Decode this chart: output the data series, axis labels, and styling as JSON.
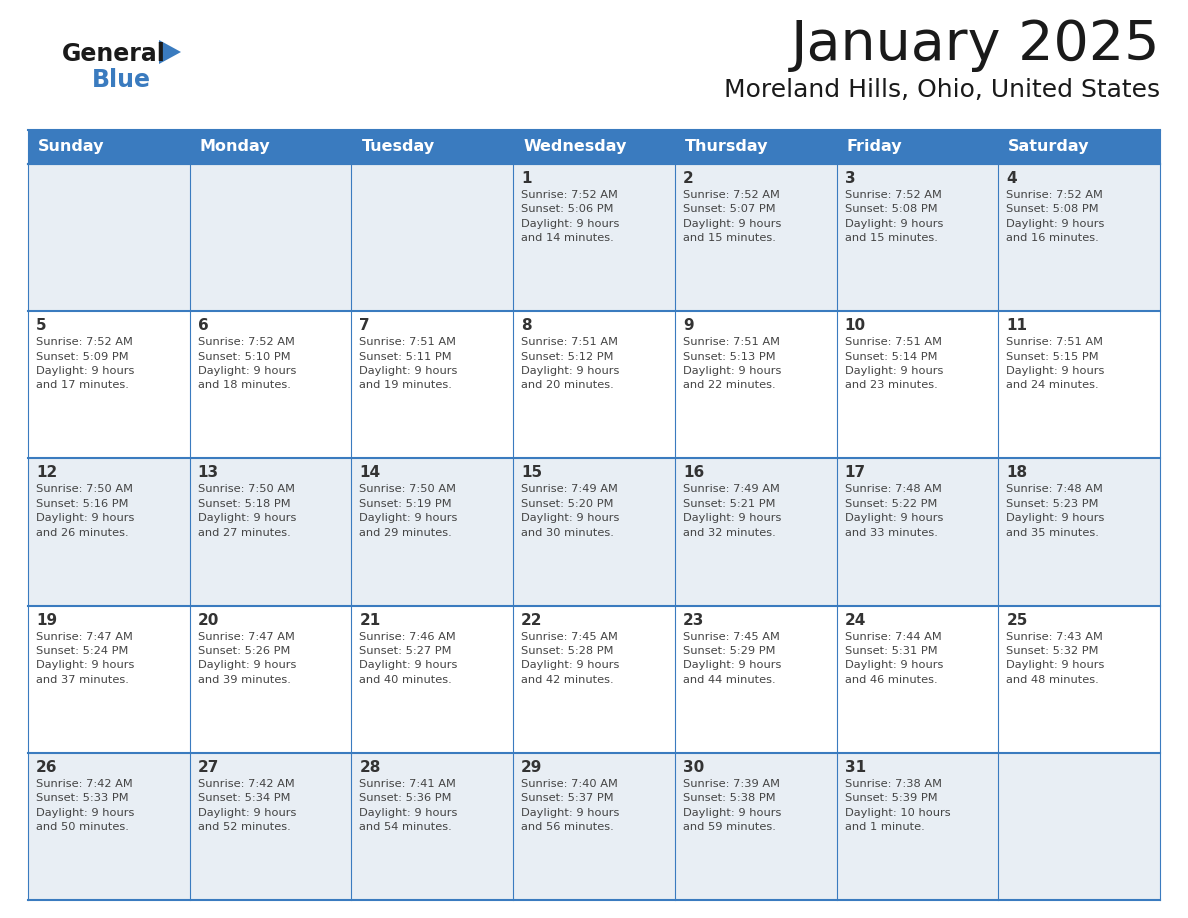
{
  "title": "January 2025",
  "subtitle": "Moreland Hills, Ohio, United States",
  "header_bg": "#3a7bbf",
  "header_text_color": "#ffffff",
  "cell_bg_light": "#e8eef4",
  "cell_bg_white": "#ffffff",
  "border_color": "#3a7bbf",
  "text_color": "#444444",
  "day_number_color": "#3a7bbf",
  "day_headers": [
    "Sunday",
    "Monday",
    "Tuesday",
    "Wednesday",
    "Thursday",
    "Friday",
    "Saturday"
  ],
  "weeks": [
    [
      {
        "day": null,
        "info": null
      },
      {
        "day": null,
        "info": null
      },
      {
        "day": null,
        "info": null
      },
      {
        "day": 1,
        "info": "Sunrise: 7:52 AM\nSunset: 5:06 PM\nDaylight: 9 hours\nand 14 minutes."
      },
      {
        "day": 2,
        "info": "Sunrise: 7:52 AM\nSunset: 5:07 PM\nDaylight: 9 hours\nand 15 minutes."
      },
      {
        "day": 3,
        "info": "Sunrise: 7:52 AM\nSunset: 5:08 PM\nDaylight: 9 hours\nand 15 minutes."
      },
      {
        "day": 4,
        "info": "Sunrise: 7:52 AM\nSunset: 5:08 PM\nDaylight: 9 hours\nand 16 minutes."
      }
    ],
    [
      {
        "day": 5,
        "info": "Sunrise: 7:52 AM\nSunset: 5:09 PM\nDaylight: 9 hours\nand 17 minutes."
      },
      {
        "day": 6,
        "info": "Sunrise: 7:52 AM\nSunset: 5:10 PM\nDaylight: 9 hours\nand 18 minutes."
      },
      {
        "day": 7,
        "info": "Sunrise: 7:51 AM\nSunset: 5:11 PM\nDaylight: 9 hours\nand 19 minutes."
      },
      {
        "day": 8,
        "info": "Sunrise: 7:51 AM\nSunset: 5:12 PM\nDaylight: 9 hours\nand 20 minutes."
      },
      {
        "day": 9,
        "info": "Sunrise: 7:51 AM\nSunset: 5:13 PM\nDaylight: 9 hours\nand 22 minutes."
      },
      {
        "day": 10,
        "info": "Sunrise: 7:51 AM\nSunset: 5:14 PM\nDaylight: 9 hours\nand 23 minutes."
      },
      {
        "day": 11,
        "info": "Sunrise: 7:51 AM\nSunset: 5:15 PM\nDaylight: 9 hours\nand 24 minutes."
      }
    ],
    [
      {
        "day": 12,
        "info": "Sunrise: 7:50 AM\nSunset: 5:16 PM\nDaylight: 9 hours\nand 26 minutes."
      },
      {
        "day": 13,
        "info": "Sunrise: 7:50 AM\nSunset: 5:18 PM\nDaylight: 9 hours\nand 27 minutes."
      },
      {
        "day": 14,
        "info": "Sunrise: 7:50 AM\nSunset: 5:19 PM\nDaylight: 9 hours\nand 29 minutes."
      },
      {
        "day": 15,
        "info": "Sunrise: 7:49 AM\nSunset: 5:20 PM\nDaylight: 9 hours\nand 30 minutes."
      },
      {
        "day": 16,
        "info": "Sunrise: 7:49 AM\nSunset: 5:21 PM\nDaylight: 9 hours\nand 32 minutes."
      },
      {
        "day": 17,
        "info": "Sunrise: 7:48 AM\nSunset: 5:22 PM\nDaylight: 9 hours\nand 33 minutes."
      },
      {
        "day": 18,
        "info": "Sunrise: 7:48 AM\nSunset: 5:23 PM\nDaylight: 9 hours\nand 35 minutes."
      }
    ],
    [
      {
        "day": 19,
        "info": "Sunrise: 7:47 AM\nSunset: 5:24 PM\nDaylight: 9 hours\nand 37 minutes."
      },
      {
        "day": 20,
        "info": "Sunrise: 7:47 AM\nSunset: 5:26 PM\nDaylight: 9 hours\nand 39 minutes."
      },
      {
        "day": 21,
        "info": "Sunrise: 7:46 AM\nSunset: 5:27 PM\nDaylight: 9 hours\nand 40 minutes."
      },
      {
        "day": 22,
        "info": "Sunrise: 7:45 AM\nSunset: 5:28 PM\nDaylight: 9 hours\nand 42 minutes."
      },
      {
        "day": 23,
        "info": "Sunrise: 7:45 AM\nSunset: 5:29 PM\nDaylight: 9 hours\nand 44 minutes."
      },
      {
        "day": 24,
        "info": "Sunrise: 7:44 AM\nSunset: 5:31 PM\nDaylight: 9 hours\nand 46 minutes."
      },
      {
        "day": 25,
        "info": "Sunrise: 7:43 AM\nSunset: 5:32 PM\nDaylight: 9 hours\nand 48 minutes."
      }
    ],
    [
      {
        "day": 26,
        "info": "Sunrise: 7:42 AM\nSunset: 5:33 PM\nDaylight: 9 hours\nand 50 minutes."
      },
      {
        "day": 27,
        "info": "Sunrise: 7:42 AM\nSunset: 5:34 PM\nDaylight: 9 hours\nand 52 minutes."
      },
      {
        "day": 28,
        "info": "Sunrise: 7:41 AM\nSunset: 5:36 PM\nDaylight: 9 hours\nand 54 minutes."
      },
      {
        "day": 29,
        "info": "Sunrise: 7:40 AM\nSunset: 5:37 PM\nDaylight: 9 hours\nand 56 minutes."
      },
      {
        "day": 30,
        "info": "Sunrise: 7:39 AM\nSunset: 5:38 PM\nDaylight: 9 hours\nand 59 minutes."
      },
      {
        "day": 31,
        "info": "Sunrise: 7:38 AM\nSunset: 5:39 PM\nDaylight: 10 hours\nand 1 minute."
      },
      {
        "day": null,
        "info": null
      }
    ]
  ]
}
